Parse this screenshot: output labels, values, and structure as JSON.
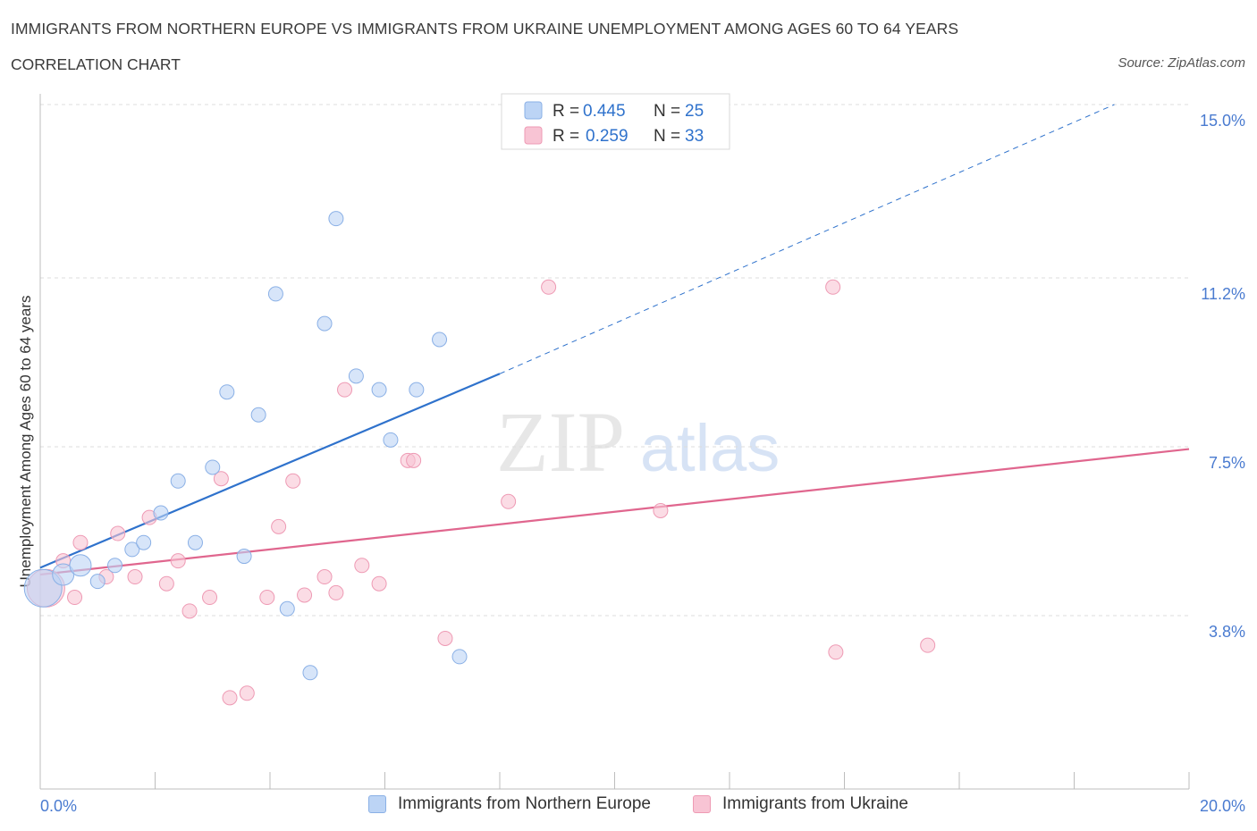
{
  "title": "IMMIGRANTS FROM NORTHERN EUROPE VS IMMIGRANTS FROM UKRAINE UNEMPLOYMENT AMONG AGES 60 TO 64 YEARS",
  "subtitle": "CORRELATION CHART",
  "source": "Source: ZipAtlas.com",
  "watermark": {
    "zip": "ZIP",
    "atlas": "atlas"
  },
  "legend": {
    "r_label": "R =",
    "n_label": "N =",
    "rows": [
      {
        "r": "0.445",
        "n": "25",
        "color": "#a8c6f0"
      },
      {
        "r": "0.259",
        "n": "33",
        "color": "#f5b7c9"
      }
    ]
  },
  "colors": {
    "blue_fill": "#bcd4f5",
    "blue_stroke": "#8ab0e6",
    "blue_line": "#2f72cc",
    "pink_fill": "#f8c4d4",
    "pink_stroke": "#ee9ab4",
    "pink_line": "#e0668e",
    "axis_text": "#4a7bd0"
  },
  "chart_data": {
    "type": "scatter",
    "title": "IMMIGRANTS FROM NORTHERN EUROPE VS IMMIGRANTS FROM UKRAINE UNEMPLOYMENT AMONG AGES 60 TO 64 YEARS",
    "subtitle": "CORRELATION CHART",
    "xlabel": "",
    "ylabel": "Unemployment Among Ages 60 to 64 years",
    "xlim": [
      0,
      20
    ],
    "ylim": [
      0,
      15
    ],
    "x_tick_labels": [
      "0.0%",
      "20.0%"
    ],
    "y_ticks": [
      3.8,
      7.5,
      11.2,
      15.0
    ],
    "y_tick_labels": [
      "3.8%",
      "7.5%",
      "11.2%",
      "15.0%"
    ],
    "grid": true,
    "legend_position": "top-center",
    "series": [
      {
        "name": "Immigrants from Northern Europe",
        "r": 0.445,
        "n": 25,
        "points": [
          {
            "x": 0.05,
            "y": 4.4,
            "size": "large"
          },
          {
            "x": 0.4,
            "y": 4.7,
            "size": "medium"
          },
          {
            "x": 0.7,
            "y": 4.9,
            "size": "medium"
          },
          {
            "x": 1.0,
            "y": 4.55
          },
          {
            "x": 1.3,
            "y": 4.9
          },
          {
            "x": 1.6,
            "y": 5.25
          },
          {
            "x": 1.8,
            "y": 5.4
          },
          {
            "x": 2.1,
            "y": 6.05
          },
          {
            "x": 2.4,
            "y": 6.75
          },
          {
            "x": 2.7,
            "y": 5.4
          },
          {
            "x": 3.0,
            "y": 7.05
          },
          {
            "x": 3.25,
            "y": 8.7
          },
          {
            "x": 3.55,
            "y": 5.1
          },
          {
            "x": 3.8,
            "y": 8.2
          },
          {
            "x": 4.1,
            "y": 10.85
          },
          {
            "x": 4.3,
            "y": 3.95
          },
          {
            "x": 4.7,
            "y": 2.55
          },
          {
            "x": 4.95,
            "y": 10.2
          },
          {
            "x": 5.15,
            "y": 12.5
          },
          {
            "x": 5.5,
            "y": 9.05
          },
          {
            "x": 5.9,
            "y": 8.75
          },
          {
            "x": 6.1,
            "y": 7.65
          },
          {
            "x": 6.55,
            "y": 8.75
          },
          {
            "x": 6.95,
            "y": 9.85
          },
          {
            "x": 7.3,
            "y": 2.9
          }
        ],
        "trend": {
          "x0": 0,
          "y0": 4.85,
          "x1": 8.0,
          "y1": 9.1,
          "dashed_to_x": 18.7,
          "dashed_to_y": 15.0
        }
      },
      {
        "name": "Immigrants from Ukraine",
        "r": 0.259,
        "n": 33,
        "points": [
          {
            "x": 0.1,
            "y": 4.4,
            "size": "large"
          },
          {
            "x": 0.4,
            "y": 5.0
          },
          {
            "x": 0.6,
            "y": 4.2
          },
          {
            "x": 0.7,
            "y": 5.4
          },
          {
            "x": 1.15,
            "y": 4.65
          },
          {
            "x": 1.35,
            "y": 5.6
          },
          {
            "x": 1.65,
            "y": 4.65
          },
          {
            "x": 1.9,
            "y": 5.95
          },
          {
            "x": 2.2,
            "y": 4.5
          },
          {
            "x": 2.4,
            "y": 5.0
          },
          {
            "x": 2.6,
            "y": 3.9
          },
          {
            "x": 2.95,
            "y": 4.2
          },
          {
            "x": 3.15,
            "y": 6.8
          },
          {
            "x": 3.3,
            "y": 2.0
          },
          {
            "x": 3.6,
            "y": 2.1
          },
          {
            "x": 3.95,
            "y": 4.2
          },
          {
            "x": 4.15,
            "y": 5.75
          },
          {
            "x": 4.4,
            "y": 6.75
          },
          {
            "x": 4.6,
            "y": 4.25
          },
          {
            "x": 4.95,
            "y": 4.65
          },
          {
            "x": 5.15,
            "y": 4.3
          },
          {
            "x": 5.3,
            "y": 8.75
          },
          {
            "x": 5.6,
            "y": 4.9
          },
          {
            "x": 5.9,
            "y": 4.5
          },
          {
            "x": 6.4,
            "y": 7.2
          },
          {
            "x": 6.5,
            "y": 7.2
          },
          {
            "x": 7.05,
            "y": 3.3
          },
          {
            "x": 8.15,
            "y": 6.3
          },
          {
            "x": 8.85,
            "y": 11.0
          },
          {
            "x": 10.8,
            "y": 6.1
          },
          {
            "x": 13.8,
            "y": 11.0
          },
          {
            "x": 13.85,
            "y": 3.0
          },
          {
            "x": 15.45,
            "y": 3.15
          }
        ],
        "trend": {
          "x0": 0,
          "y0": 4.7,
          "x1": 20,
          "y1": 7.45
        }
      }
    ]
  }
}
